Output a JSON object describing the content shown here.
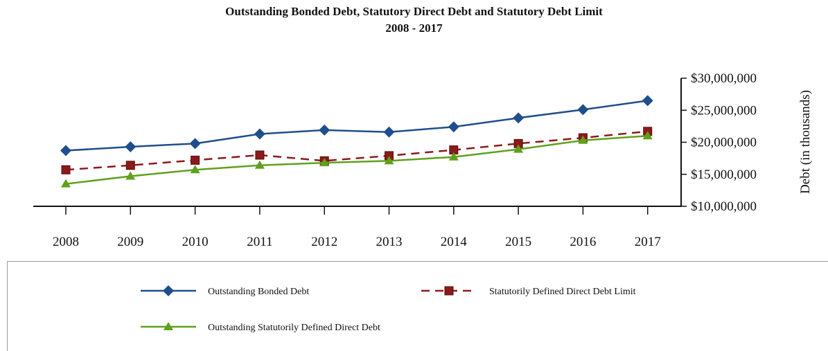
{
  "title_line1": "Outstanding Bonded Debt, Statutory Direct Debt and Statutory Debt Limit",
  "title_line2": "2008 - 2017",
  "colors": {
    "bonded": "#1f4e8c",
    "limit": "#8b1a1a",
    "direct": "#5fa01c",
    "axis": "#111111"
  },
  "chart_data": {
    "type": "line",
    "title": "Outstanding Bonded Debt, Statutory Direct Debt and Statutory Debt Limit\n2008 - 2017",
    "xlabel": "",
    "ylabel": "Debt (in thousands)",
    "x": [
      "2008",
      "2009",
      "2010",
      "2011",
      "2012",
      "2013",
      "2014",
      "2015",
      "2016",
      "2017"
    ],
    "ylim": [
      10000000,
      30000000
    ],
    "yticks": [
      10000000,
      15000000,
      20000000,
      25000000,
      30000000
    ],
    "ytick_labels": [
      "$10,000,000",
      "$15,000,000",
      "$20,000,000",
      "$25,000,000",
      "$30,000,000"
    ],
    "y_axis_side": "right",
    "grid": false,
    "legend_position": "bottom",
    "series": [
      {
        "name": "Outstanding Bonded Debt",
        "marker": "diamond",
        "line": "solid",
        "values": [
          18700000,
          19300000,
          19800000,
          21300000,
          21900000,
          21600000,
          22400000,
          23800000,
          25100000,
          26500000
        ]
      },
      {
        "name": "Statutorily Defined Direct Debt Limit",
        "marker": "square",
        "line": "dashed",
        "values": [
          15700000,
          16400000,
          17200000,
          18000000,
          17100000,
          17900000,
          18800000,
          19800000,
          20700000,
          21700000
        ]
      },
      {
        "name": "Outstanding Statutorily Defined Direct Debt",
        "marker": "triangle",
        "line": "solid",
        "values": [
          13500000,
          14700000,
          15700000,
          16400000,
          16800000,
          17100000,
          17700000,
          18900000,
          20300000,
          21000000
        ]
      }
    ]
  }
}
